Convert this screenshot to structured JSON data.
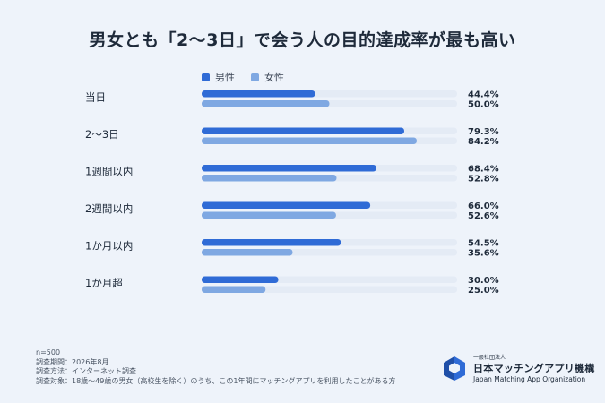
{
  "title": "男女とも「2〜3日」で会う人の目的達成率が最も高い",
  "colors": {
    "male": "#2f6bd6",
    "female": "#7fa8e2",
    "track": "#e4ebf5",
    "logo": "#2f6bd6"
  },
  "chart_data": {
    "type": "bar",
    "orientation": "horizontal",
    "categories": [
      "当日",
      "2〜3日",
      "1週間以内",
      "2週間以内",
      "1か月以内",
      "1か月超"
    ],
    "series": [
      {
        "name": "男性",
        "values": [
          44.4,
          79.3,
          68.4,
          66.0,
          54.5,
          30.0
        ]
      },
      {
        "name": "女性",
        "values": [
          50.0,
          84.2,
          52.8,
          52.6,
          35.6,
          25.0
        ]
      }
    ],
    "value_labels": {
      "male": [
        "44.4%",
        "79.3%",
        "68.4%",
        "66.0%",
        "54.5%",
        "30.0%"
      ],
      "female": [
        "50.0%",
        "84.2%",
        "52.8%",
        "52.6%",
        "35.6%",
        "25.0%"
      ]
    },
    "xlim": [
      0,
      100
    ],
    "legend_position": "top-left",
    "grid": false
  },
  "footer": {
    "line1": "n=500",
    "line2": "調査期間：2026年8月",
    "line3": "調査方法：インターネット調査",
    "line4": "調査対象：18歳〜49歳の男女（高校生を除く）のうち、この1年間にマッチングアプリを利用したことがある方"
  },
  "logo": {
    "small": "一般社団法人",
    "main": "日本マッチングアプリ機構",
    "en": "Japan Matching App Organization",
    "icon": "organization-logo-icon"
  }
}
